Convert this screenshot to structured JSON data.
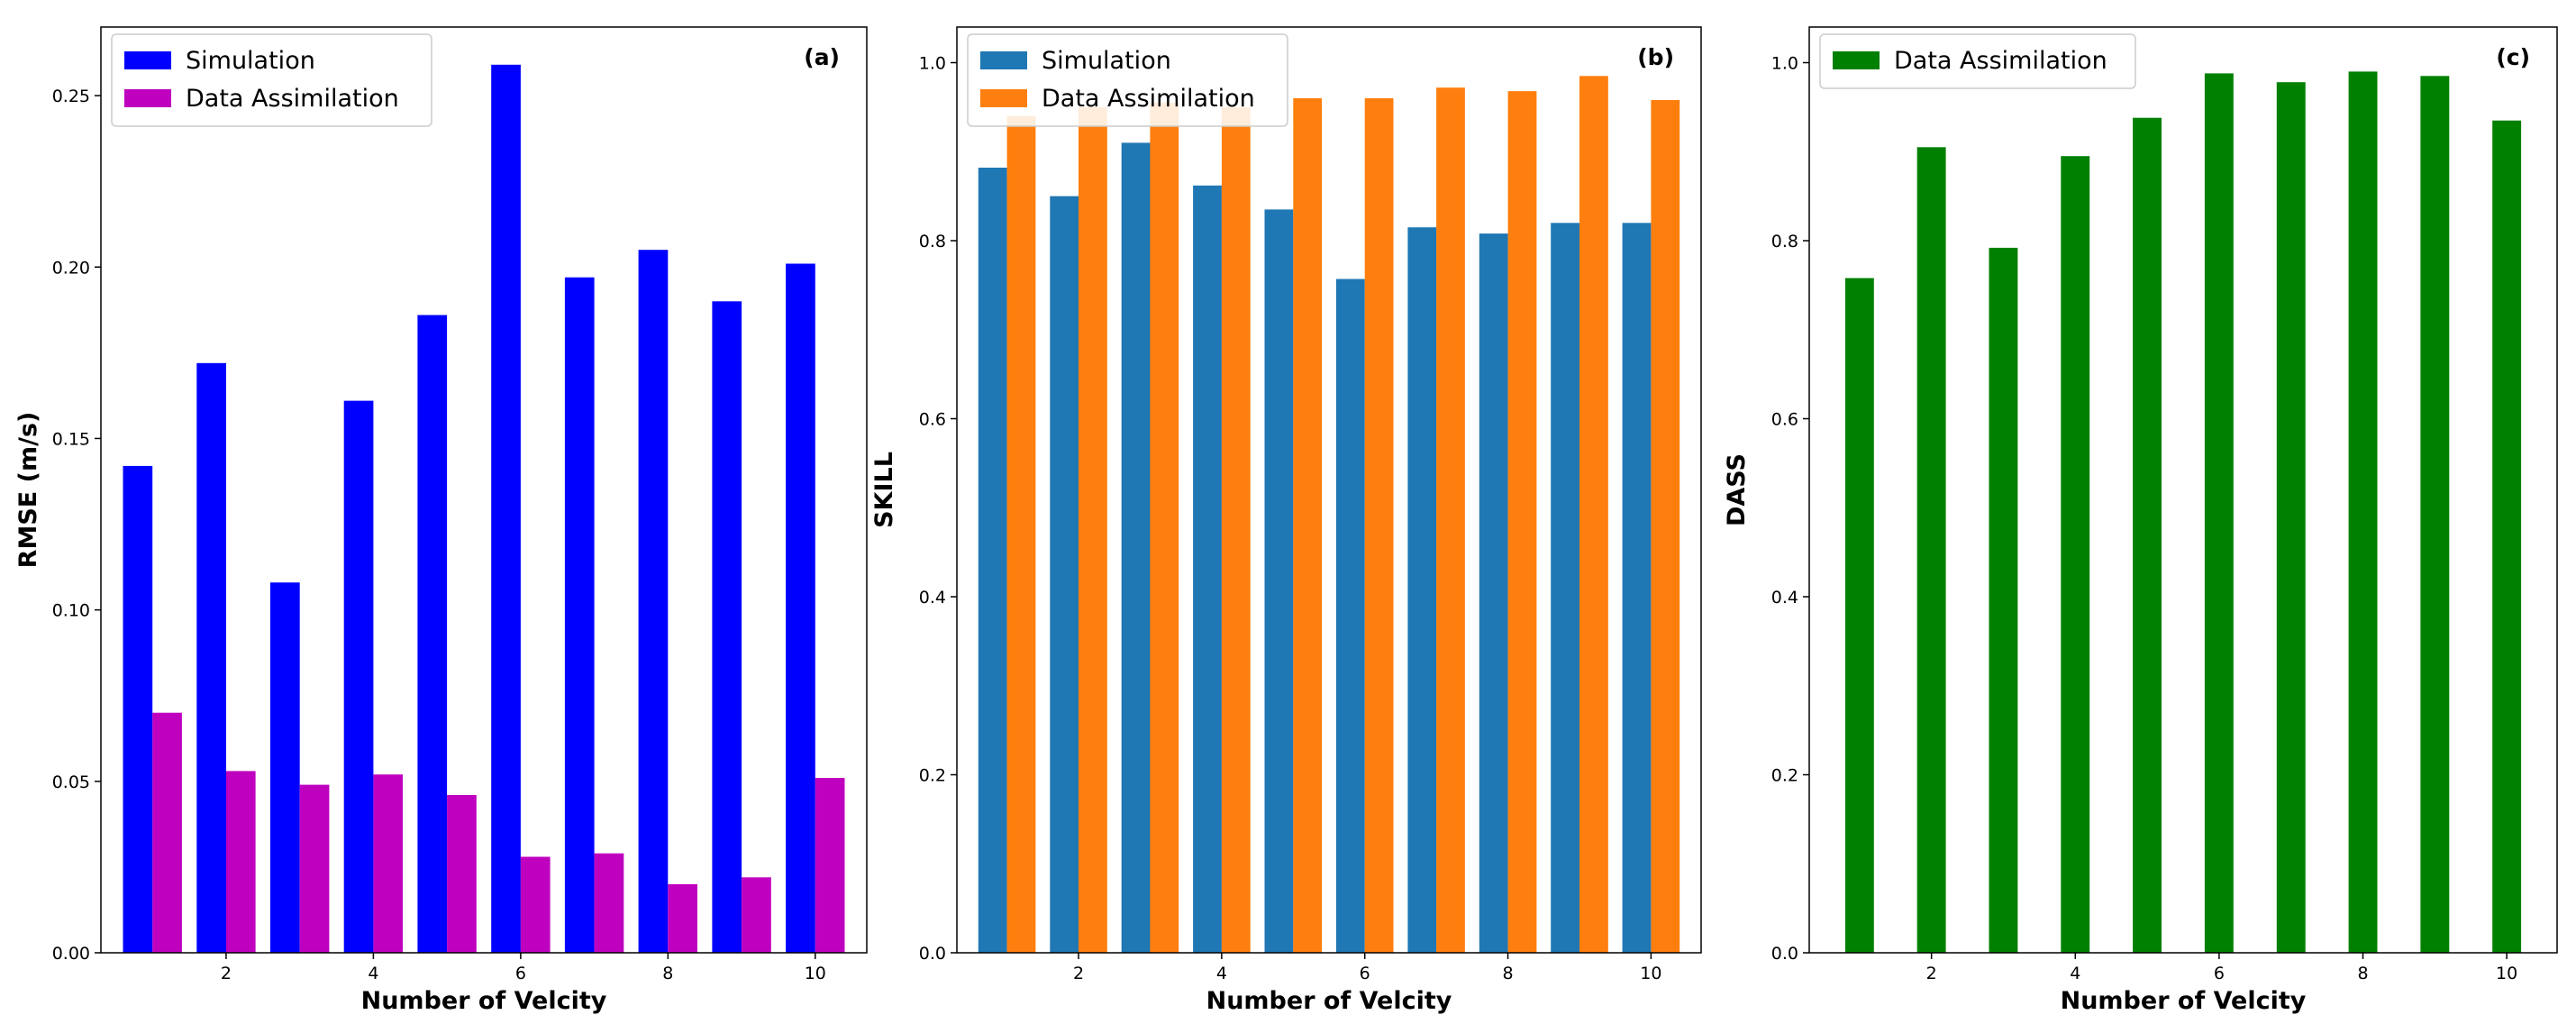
{
  "chart_data": [
    {
      "type": "bar",
      "panel_label": "(a)",
      "title": "",
      "xlabel": "Number of Velcity",
      "ylabel": "RMSE (m/s)",
      "categories": [
        1,
        2,
        3,
        4,
        5,
        6,
        7,
        8,
        9,
        10
      ],
      "xticks": [
        "2",
        "4",
        "6",
        "8",
        "10"
      ],
      "ylim": [
        0,
        0.27
      ],
      "yticks": [
        "0.00",
        "0.05",
        "0.10",
        "0.15",
        "0.20",
        "0.25"
      ],
      "series": [
        {
          "name": "Simulation",
          "color": "#0000ff",
          "values": [
            0.142,
            0.172,
            0.108,
            0.161,
            0.186,
            0.259,
            0.197,
            0.205,
            0.19,
            0.201
          ]
        },
        {
          "name": "Data Assimilation",
          "color": "#bf00bf",
          "values": [
            0.07,
            0.053,
            0.049,
            0.052,
            0.046,
            0.028,
            0.029,
            0.02,
            0.022,
            0.051
          ]
        }
      ],
      "legend": "top-left",
      "grid": false
    },
    {
      "type": "bar",
      "panel_label": "(b)",
      "title": "",
      "xlabel": "Number of Velcity",
      "ylabel": "SKILL",
      "categories": [
        1,
        2,
        3,
        4,
        5,
        6,
        7,
        8,
        9,
        10
      ],
      "xticks": [
        "2",
        "4",
        "6",
        "8",
        "10"
      ],
      "ylim": [
        0,
        1.04
      ],
      "yticks": [
        "0.0",
        "0.2",
        "0.4",
        "0.6",
        "0.8",
        "1.0"
      ],
      "series": [
        {
          "name": "Simulation",
          "color": "#1f77b4",
          "values": [
            0.882,
            0.85,
            0.91,
            0.862,
            0.835,
            0.757,
            0.815,
            0.808,
            0.82,
            0.82
          ]
        },
        {
          "name": "Data Assimilation",
          "color": "#ff7f0e",
          "values": [
            0.94,
            0.95,
            0.955,
            0.95,
            0.96,
            0.96,
            0.972,
            0.968,
            0.985,
            0.958
          ]
        }
      ],
      "legend": "top-left",
      "grid": false
    },
    {
      "type": "bar",
      "panel_label": "(c)",
      "title": "",
      "xlabel": "Number of Velcity",
      "ylabel": "DASS",
      "categories": [
        1,
        2,
        3,
        4,
        5,
        6,
        7,
        8,
        9,
        10
      ],
      "xticks": [
        "2",
        "4",
        "6",
        "8",
        "10"
      ],
      "ylim": [
        0,
        1.04
      ],
      "yticks": [
        "0.0",
        "0.2",
        "0.4",
        "0.6",
        "0.8",
        "1.0"
      ],
      "series": [
        {
          "name": "Data Assimilation",
          "color": "#008000",
          "values": [
            0.758,
            0.905,
            0.792,
            0.895,
            0.938,
            0.988,
            0.978,
            0.99,
            0.985,
            0.935
          ]
        }
      ],
      "legend": "top-left",
      "grid": false
    }
  ]
}
